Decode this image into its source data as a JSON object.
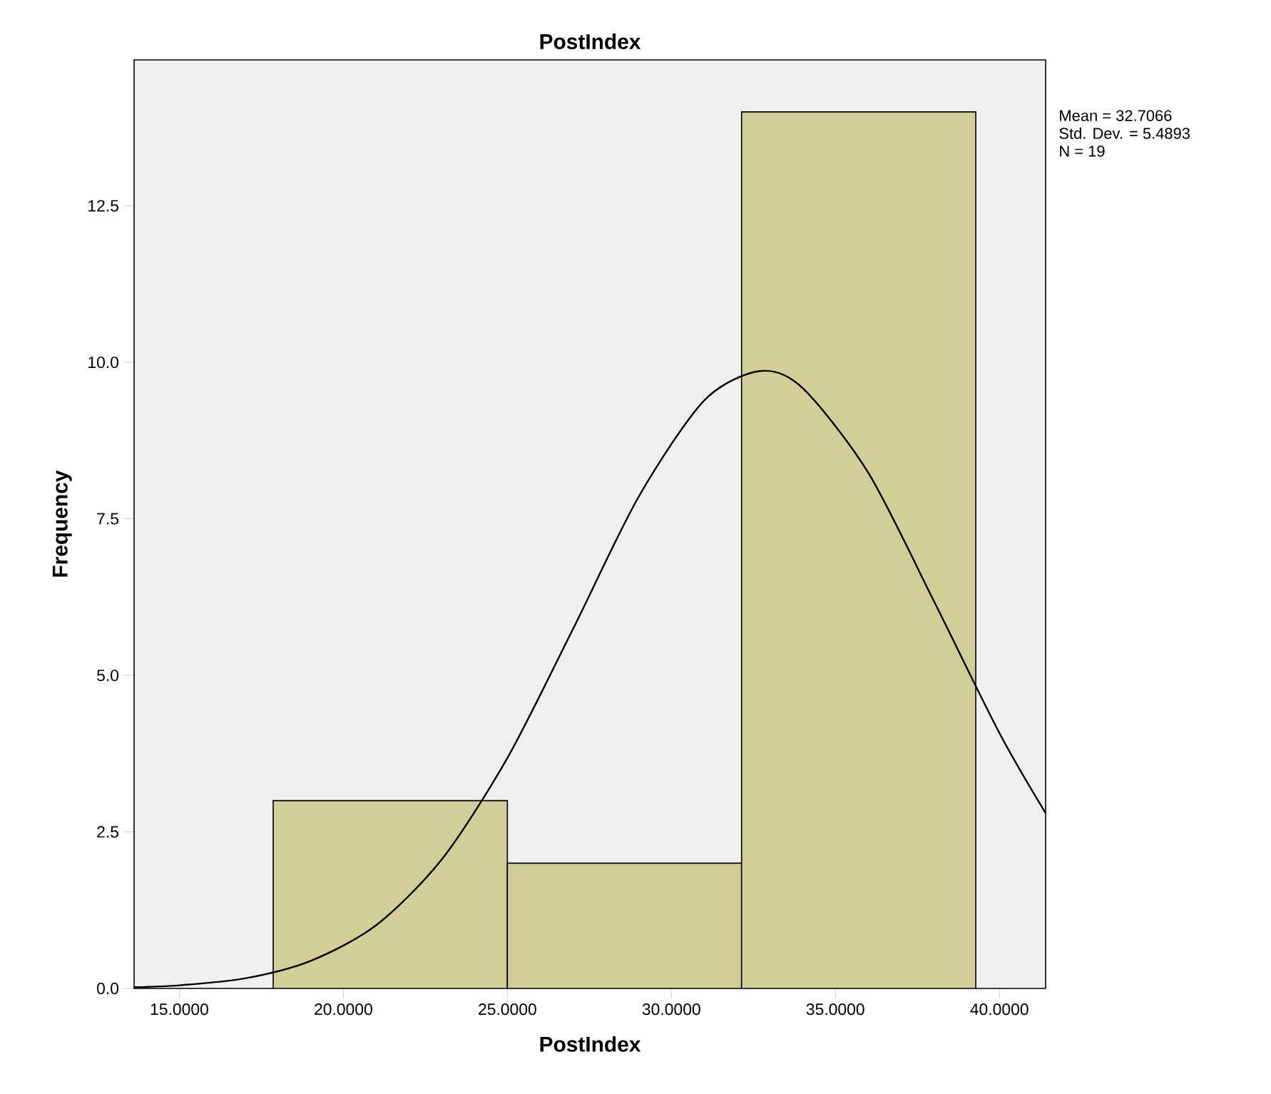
{
  "chart_data": {
    "type": "histogram",
    "title": "PostIndex",
    "xlabel": "PostIndex",
    "ylabel": "Frequency",
    "bins": [
      17.86,
      25.0,
      32.14,
      39.28
    ],
    "values": [
      3,
      2,
      14
    ],
    "color": "#d3ce97",
    "series": [
      {
        "type": "line",
        "color": "#000000",
        "x": [
          13.62,
          15,
          17,
          19,
          21,
          23,
          25,
          27,
          29,
          31,
          32.7,
          34,
          36,
          38,
          40,
          41.41
        ],
        "values": [
          0.02,
          0.05,
          0.16,
          0.44,
          1.01,
          2.06,
          3.68,
          5.74,
          7.85,
          9.39,
          9.86,
          9.59,
          8.24,
          6.19,
          4.08,
          2.8
        ]
      }
    ],
    "xlim": [
      13.62,
      41.41
    ],
    "ylim": [
      0,
      14.83
    ],
    "xticks": [
      {
        "value": 15,
        "label": "15.0000"
      },
      {
        "value": 20,
        "label": "20.0000"
      },
      {
        "value": 25,
        "label": "25.0000"
      },
      {
        "value": 30,
        "label": "30.0000"
      },
      {
        "value": 35,
        "label": "35.0000"
      },
      {
        "value": 40,
        "label": "40.0000"
      }
    ],
    "yticks": [
      {
        "value": 0,
        "label": "0.0"
      },
      {
        "value": 2.5,
        "label": "2.5"
      },
      {
        "value": 5,
        "label": "5.0"
      },
      {
        "value": 7.5,
        "label": "7.5"
      },
      {
        "value": 10,
        "label": "10.0"
      },
      {
        "value": 12.5,
        "label": "12.5"
      }
    ],
    "annotations": [
      "Mean = 32.7066",
      "Std. Dev. = 5.4893",
      "N = 19"
    ],
    "grid": false
  }
}
